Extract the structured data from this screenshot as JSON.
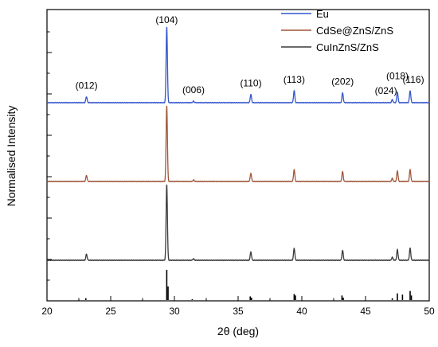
{
  "chart_data": {
    "type": "line",
    "xlabel": "2θ (deg)",
    "ylabel": "Normalised Intensity",
    "xlim": [
      20,
      50
    ],
    "xticks": [
      "20",
      "25",
      "30",
      "35",
      "40",
      "45",
      "50"
    ],
    "legend_position": "top-right",
    "grid": false,
    "series": [
      {
        "name": "Eu",
        "color": "#3355cc",
        "role": "trace",
        "offset_level": 2
      },
      {
        "name": "CdSe@ZnS/ZnS",
        "color": "#a0563a",
        "role": "trace",
        "offset_level": 1
      },
      {
        "name": "CuInZnS/ZnS",
        "color": "#3a3a3a",
        "role": "trace",
        "offset_level": 0
      }
    ],
    "peaks": [
      {
        "label": "(012)",
        "x": 23.1,
        "rel": 0.08
      },
      {
        "label": "(104)",
        "x": 29.4,
        "rel": 1.0
      },
      {
        "label": "(006)",
        "x": 31.5,
        "rel": 0.02
      },
      {
        "label": "(110)",
        "x": 36.0,
        "rel": 0.11
      },
      {
        "label": "(113)",
        "x": 39.4,
        "rel": 0.16
      },
      {
        "label": "(202)",
        "x": 43.2,
        "rel": 0.13
      },
      {
        "label": "(024)",
        "x": 47.1,
        "rel": 0.04
      },
      {
        "label": "(018)",
        "x": 47.5,
        "rel": 0.14
      },
      {
        "label": "(116)",
        "x": 48.5,
        "rel": 0.16
      }
    ],
    "reference_sticks": [
      {
        "x": 23.05,
        "rel": 0.06
      },
      {
        "x": 29.4,
        "rel": 1.0
      },
      {
        "x": 29.5,
        "rel": 0.45
      },
      {
        "x": 31.4,
        "rel": 0.03
      },
      {
        "x": 35.95,
        "rel": 0.12
      },
      {
        "x": 36.05,
        "rel": 0.08
      },
      {
        "x": 39.4,
        "rel": 0.2
      },
      {
        "x": 39.5,
        "rel": 0.15
      },
      {
        "x": 43.15,
        "rel": 0.15
      },
      {
        "x": 43.25,
        "rel": 0.08
      },
      {
        "x": 47.1,
        "rel": 0.06
      },
      {
        "x": 47.5,
        "rel": 0.22
      },
      {
        "x": 47.9,
        "rel": 0.18
      },
      {
        "x": 48.5,
        "rel": 0.3
      },
      {
        "x": 48.6,
        "rel": 0.15
      }
    ]
  }
}
